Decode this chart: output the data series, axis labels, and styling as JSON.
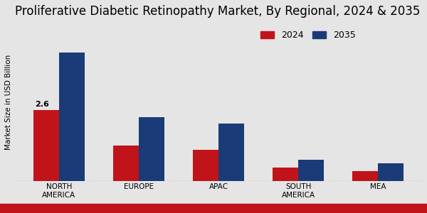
{
  "title": "Proliferative Diabetic Retinopathy Market, By Regional, 2024 & 2035",
  "categories": [
    "NORTH\nAMERICA",
    "EUROPE",
    "APAC",
    "SOUTH\nAMERICA",
    "MEA"
  ],
  "values_2024": [
    2.6,
    1.3,
    1.15,
    0.5,
    0.38
  ],
  "values_2035": [
    4.7,
    2.35,
    2.1,
    0.78,
    0.65
  ],
  "color_2024": "#c0141a",
  "color_2035": "#1b3a78",
  "ylabel": "Market Size in USD Billion",
  "annotation_value": "2.6",
  "background_color": "#e5e5e5",
  "legend_labels": [
    "2024",
    "2035"
  ],
  "bar_width": 0.32,
  "title_fontsize": 12,
  "label_fontsize": 7.5,
  "ylim": [
    0,
    5.8
  ],
  "bottom_bar_color": "#c0141a"
}
